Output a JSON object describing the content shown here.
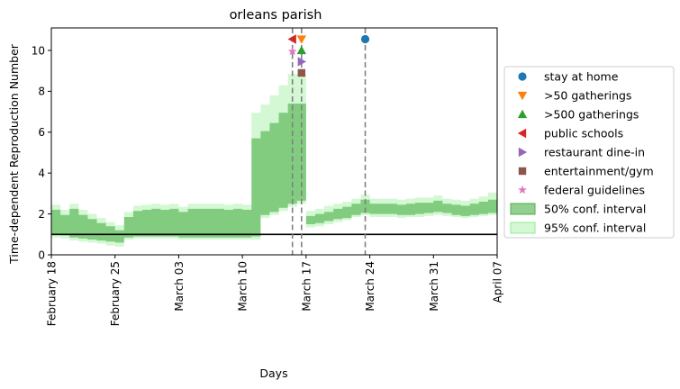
{
  "chart_data": {
    "type": "area",
    "title": "orleans parish",
    "xlabel": "Days",
    "ylabel": "Time-dependent Reproduction Number",
    "x_start_date": "2020-02-18",
    "x_end_date": "2020-04-07",
    "xlim": [
      "2020-02-18",
      "2020-04-07"
    ],
    "ylim": [
      0,
      11.1
    ],
    "yticks": [
      0,
      2,
      4,
      6,
      8,
      10
    ],
    "xticks": [
      {
        "date": "2020-02-18",
        "label": "February 18"
      },
      {
        "date": "2020-02-25",
        "label": "February 25"
      },
      {
        "date": "2020-03-03",
        "label": "March 03"
      },
      {
        "date": "2020-03-10",
        "label": "March 10"
      },
      {
        "date": "2020-03-17",
        "label": "March 17"
      },
      {
        "date": "2020-03-24",
        "label": "March 24"
      },
      {
        "date": "2020-03-31",
        "label": "March 31"
      },
      {
        "date": "2020-04-07",
        "label": "April 07"
      }
    ],
    "reference_line_y": 1,
    "dates": [
      "2020-02-18",
      "2020-02-19",
      "2020-02-20",
      "2020-02-21",
      "2020-02-22",
      "2020-02-23",
      "2020-02-24",
      "2020-02-25",
      "2020-02-26",
      "2020-02-27",
      "2020-02-28",
      "2020-02-29",
      "2020-03-01",
      "2020-03-02",
      "2020-03-03",
      "2020-03-04",
      "2020-03-05",
      "2020-03-06",
      "2020-03-07",
      "2020-03-08",
      "2020-03-09",
      "2020-03-10",
      "2020-03-11",
      "2020-03-12",
      "2020-03-13",
      "2020-03-14",
      "2020-03-15",
      "2020-03-16",
      "2020-03-17",
      "2020-03-18",
      "2020-03-19",
      "2020-03-20",
      "2020-03-21",
      "2020-03-22",
      "2020-03-23",
      "2020-03-24",
      "2020-03-25",
      "2020-03-26",
      "2020-03-27",
      "2020-03-28",
      "2020-03-29",
      "2020-03-30",
      "2020-03-31",
      "2020-04-01",
      "2020-04-02",
      "2020-04-03",
      "2020-04-04",
      "2020-04-05",
      "2020-04-06"
    ],
    "series": [
      {
        "name": "50% conf. interval",
        "color": "#4daf4a",
        "opacity": 0.6,
        "lower": [
          1.0,
          0.95,
          0.85,
          0.8,
          0.75,
          0.7,
          0.65,
          0.6,
          0.85,
          0.9,
          0.9,
          0.9,
          0.9,
          0.9,
          0.85,
          0.85,
          0.85,
          0.85,
          0.85,
          0.85,
          0.85,
          0.85,
          0.9,
          1.95,
          2.1,
          2.3,
          2.5,
          2.65,
          1.5,
          1.55,
          1.65,
          1.75,
          1.8,
          1.95,
          2.05,
          2.0,
          2.0,
          2.0,
          1.95,
          1.95,
          2.0,
          2.05,
          2.1,
          2.05,
          1.95,
          1.9,
          1.95,
          2.0,
          2.05
        ],
        "upper": [
          2.2,
          1.95,
          2.25,
          1.95,
          1.75,
          1.55,
          1.4,
          1.2,
          1.85,
          2.15,
          2.2,
          2.25,
          2.2,
          2.25,
          2.1,
          2.25,
          2.25,
          2.25,
          2.25,
          2.2,
          2.25,
          2.2,
          5.7,
          6.05,
          6.45,
          6.95,
          7.4,
          7.4,
          1.9,
          2.0,
          2.1,
          2.25,
          2.35,
          2.5,
          2.7,
          2.5,
          2.5,
          2.5,
          2.45,
          2.5,
          2.55,
          2.55,
          2.65,
          2.5,
          2.45,
          2.4,
          2.5,
          2.6,
          2.7
        ]
      },
      {
        "name": "95% conf. interval",
        "color": "#90ee90",
        "opacity": 0.4,
        "lower": [
          0.85,
          0.8,
          0.7,
          0.65,
          0.6,
          0.55,
          0.45,
          0.4,
          0.75,
          0.8,
          0.8,
          0.8,
          0.8,
          0.8,
          0.75,
          0.75,
          0.75,
          0.75,
          0.75,
          0.75,
          0.75,
          0.75,
          0.75,
          1.8,
          1.95,
          2.15,
          2.35,
          2.5,
          1.35,
          1.4,
          1.5,
          1.6,
          1.7,
          1.85,
          1.95,
          1.85,
          1.85,
          1.85,
          1.8,
          1.85,
          1.85,
          1.9,
          1.95,
          1.9,
          1.85,
          1.8,
          1.85,
          1.9,
          1.95
        ],
        "upper": [
          2.45,
          2.2,
          2.5,
          2.2,
          2.0,
          1.8,
          1.6,
          1.45,
          2.1,
          2.4,
          2.45,
          2.5,
          2.45,
          2.5,
          2.35,
          2.5,
          2.5,
          2.5,
          2.5,
          2.45,
          2.5,
          2.45,
          6.95,
          7.35,
          7.8,
          8.3,
          8.85,
          8.85,
          2.15,
          2.25,
          2.4,
          2.5,
          2.6,
          2.75,
          2.95,
          2.75,
          2.75,
          2.75,
          2.7,
          2.75,
          2.8,
          2.8,
          2.9,
          2.75,
          2.7,
          2.65,
          2.75,
          2.85,
          3.05
        ]
      }
    ],
    "events": [
      {
        "name": "stay at home",
        "date": "2020-03-23",
        "y": 10.55,
        "marker": "circle",
        "color": "#1f77b4",
        "vline": true
      },
      {
        "name": ">50 gatherings",
        "date": "2020-03-16",
        "y": 10.55,
        "marker": "triangle-down",
        "color": "#ff7f0e",
        "vline": true
      },
      {
        "name": ">500 gatherings",
        "date": "2020-03-16",
        "y": 10.0,
        "marker": "triangle-up",
        "color": "#2ca02c",
        "vline": false
      },
      {
        "name": "public schools",
        "date": "2020-03-15",
        "y": 10.55,
        "marker": "triangle-left",
        "color": "#d62728",
        "vline": true
      },
      {
        "name": "restaurant dine-in",
        "date": "2020-03-16",
        "y": 9.45,
        "marker": "triangle-right",
        "color": "#9467bd",
        "vline": false
      },
      {
        "name": "entertainment/gym",
        "date": "2020-03-16",
        "y": 8.9,
        "marker": "square",
        "color": "#8c564b",
        "vline": false
      },
      {
        "name": "federal guidelines",
        "date": "2020-03-15",
        "y": 9.95,
        "marker": "star",
        "color": "#e377c2",
        "vline": false
      }
    ],
    "legend": {
      "placement": "right",
      "items": [
        {
          "label": "stay at home",
          "kind": "marker",
          "marker": "circle",
          "color": "#1f77b4"
        },
        {
          "label": ">50 gatherings",
          "kind": "marker",
          "marker": "triangle-down",
          "color": "#ff7f0e"
        },
        {
          "label": ">500 gatherings",
          "kind": "marker",
          "marker": "triangle-up",
          "color": "#2ca02c"
        },
        {
          "label": "public schools",
          "kind": "marker",
          "marker": "triangle-left",
          "color": "#d62728"
        },
        {
          "label": "restaurant dine-in",
          "kind": "marker",
          "marker": "triangle-right",
          "color": "#9467bd"
        },
        {
          "label": "entertainment/gym",
          "kind": "marker",
          "marker": "square",
          "color": "#8c564b"
        },
        {
          "label": "federal guidelines",
          "kind": "marker",
          "marker": "star",
          "color": "#e377c2"
        },
        {
          "label": "50% conf. interval",
          "kind": "patch",
          "color": "#4daf4a",
          "opacity": 0.6
        },
        {
          "label": "95% conf. interval",
          "kind": "patch",
          "color": "#90ee90",
          "opacity": 0.4
        }
      ]
    },
    "grid": false
  }
}
